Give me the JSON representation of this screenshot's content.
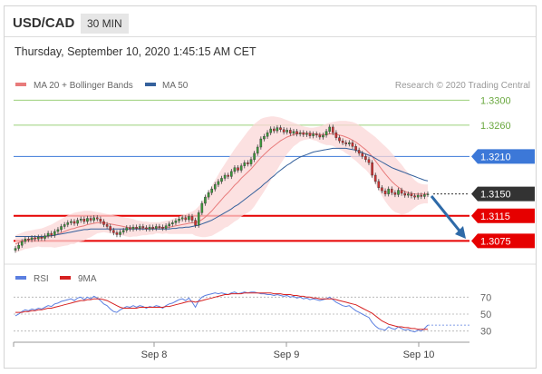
{
  "header": {
    "pair": "USD/CAD",
    "timeframe": "30 MIN"
  },
  "datetime": "Thursday, September 10, 2020 1:45:15 AM CET",
  "legend": {
    "ma20": "MA 20 + Bollinger Bands",
    "ma50": "MA 50",
    "credit": "Research © 2020 Trading Central"
  },
  "rsi_legend": {
    "rsi": "RSI",
    "ma": "9MA"
  },
  "colors": {
    "ma20": "#e87b7b",
    "ma50": "#35619c",
    "band_fill": "#fbd7d7",
    "candle_up": "#3a9a3a",
    "candle_down": "#d03030",
    "resistance": "#9bd07a",
    "support": "#e60000",
    "pivot": "#3c78d8",
    "rsi": "#5b7fe0",
    "rsi_ma": "#d62020",
    "arrow": "#2e6aa8"
  },
  "chart_data": [
    {
      "type": "candlestick",
      "title": "USD/CAD 30 MIN",
      "x_ticks": [
        "Sep 8",
        "Sep 9",
        "Sep 10"
      ],
      "ylim": [
        1.3045,
        1.3315
      ],
      "levels": [
        {
          "label": "1.3300",
          "value": 1.33,
          "kind": "resistance"
        },
        {
          "label": "1.3260",
          "value": 1.326,
          "kind": "resistance"
        },
        {
          "label": "1.3210",
          "value": 1.321,
          "kind": "pivot"
        },
        {
          "label": "1.3150",
          "value": 1.315,
          "kind": "last"
        },
        {
          "label": "1.3115",
          "value": 1.3115,
          "kind": "support"
        },
        {
          "label": "1.3075",
          "value": 1.3075,
          "kind": "support"
        }
      ],
      "close": [
        1.3063,
        1.3068,
        1.3074,
        1.3078,
        1.3077,
        1.308,
        1.3078,
        1.3081,
        1.3079,
        1.3083,
        1.3087,
        1.3084,
        1.309,
        1.3093,
        1.3098,
        1.3101,
        1.3104,
        1.3106,
        1.3103,
        1.3108,
        1.311,
        1.3106,
        1.3111,
        1.3108,
        1.3112,
        1.311,
        1.3106,
        1.3101,
        1.3098,
        1.3092,
        1.3088,
        1.3085,
        1.3089,
        1.3092,
        1.3096,
        1.3094,
        1.3097,
        1.3095,
        1.3098,
        1.3096,
        1.3094,
        1.3097,
        1.3095,
        1.3098,
        1.3097,
        1.3095,
        1.3099,
        1.3102,
        1.3104,
        1.3107,
        1.311,
        1.3112,
        1.3109,
        1.3114,
        1.3108,
        1.31,
        1.312,
        1.3135,
        1.3145,
        1.3152,
        1.3158,
        1.3165,
        1.317,
        1.3175,
        1.318,
        1.3178,
        1.3186,
        1.3192,
        1.3188,
        1.3195,
        1.32,
        1.3198,
        1.3205,
        1.3215,
        1.3225,
        1.3238,
        1.3242,
        1.3248,
        1.3254,
        1.3251,
        1.3256,
        1.3253,
        1.3249,
        1.3252,
        1.3247,
        1.325,
        1.3246,
        1.3248,
        1.3245,
        1.3247,
        1.3243,
        1.3246,
        1.3244,
        1.3241,
        1.3244,
        1.325,
        1.3257,
        1.3248,
        1.324,
        1.3235,
        1.3232,
        1.323,
        1.3232,
        1.3226,
        1.322,
        1.3215,
        1.321,
        1.3205,
        1.32,
        1.318,
        1.317,
        1.316,
        1.3155,
        1.315,
        1.3158,
        1.3152,
        1.3149,
        1.3156,
        1.3151,
        1.3148,
        1.315,
        1.3147,
        1.3145,
        1.3148,
        1.3146,
        1.3149,
        1.315
      ],
      "ma20": [
        1.307,
        1.3072,
        1.3074,
        1.3076,
        1.3077,
        1.3078,
        1.3079,
        1.308,
        1.308,
        1.3081,
        1.3082,
        1.3083,
        1.3084,
        1.3086,
        1.3088,
        1.309,
        1.3092,
        1.3094,
        1.3095,
        1.3097,
        1.3098,
        1.3099,
        1.3101,
        1.3102,
        1.3103,
        1.3104,
        1.3104,
        1.3104,
        1.3103,
        1.3102,
        1.3101,
        1.31,
        1.3099,
        1.3098,
        1.3097,
        1.3096,
        1.3096,
        1.3095,
        1.3095,
        1.3095,
        1.3095,
        1.3095,
        1.3095,
        1.3096,
        1.3096,
        1.3096,
        1.3097,
        1.3097,
        1.3098,
        1.3099,
        1.31,
        1.3101,
        1.3102,
        1.3103,
        1.3104,
        1.3104,
        1.3106,
        1.3109,
        1.3113,
        1.3118,
        1.3123,
        1.3129,
        1.3135,
        1.3141,
        1.3147,
        1.3152,
        1.3158,
        1.3164,
        1.3169,
        1.3175,
        1.318,
        1.3185,
        1.319,
        1.3196,
        1.3202,
        1.3208,
        1.3213,
        1.3218,
        1.3223,
        1.3227,
        1.3231,
        1.3235,
        1.3238,
        1.3241,
        1.3243,
        1.3245,
        1.3246,
        1.3247,
        1.3247,
        1.3247,
        1.3247,
        1.3246,
        1.3246,
        1.3245,
        1.3245,
        1.3245,
        1.3246,
        1.3246,
        1.3245,
        1.3244,
        1.3243,
        1.3241,
        1.3239,
        1.3236,
        1.3233,
        1.3229,
        1.3225,
        1.3221,
        1.3216,
        1.321,
        1.3203,
        1.3196,
        1.3189,
        1.3182,
        1.3176,
        1.317,
        1.3165,
        1.3161,
        1.3157,
        1.3154,
        1.3152,
        1.3151,
        1.315,
        1.315,
        1.315,
        1.315,
        1.315
      ],
      "bb_upper": [
        1.3084,
        1.3086,
        1.3088,
        1.309,
        1.3091,
        1.3092,
        1.3093,
        1.3094,
        1.3095,
        1.3097,
        1.3099,
        1.3101,
        1.3104,
        1.3107,
        1.311,
        1.3113,
        1.3116,
        1.3118,
        1.312,
        1.3121,
        1.3122,
        1.3123,
        1.3123,
        1.3123,
        1.3122,
        1.3121,
        1.312,
        1.3119,
        1.3118,
        1.3117,
        1.3116,
        1.3115,
        1.3114,
        1.3113,
        1.3112,
        1.3111,
        1.311,
        1.3108,
        1.3107,
        1.3106,
        1.3106,
        1.3105,
        1.3105,
        1.3105,
        1.3105,
        1.3106,
        1.3107,
        1.3108,
        1.311,
        1.3112,
        1.3114,
        1.3116,
        1.3118,
        1.312,
        1.3122,
        1.3125,
        1.313,
        1.3137,
        1.3145,
        1.3154,
        1.3163,
        1.3172,
        1.3181,
        1.319,
        1.3198,
        1.3206,
        1.3214,
        1.3222,
        1.3229,
        1.3236,
        1.3243,
        1.325,
        1.3256,
        1.3262,
        1.3266,
        1.327,
        1.3272,
        1.3273,
        1.3274,
        1.3274,
        1.3273,
        1.3272,
        1.327,
        1.3268,
        1.3266,
        1.3264,
        1.3262,
        1.326,
        1.3258,
        1.3257,
        1.3256,
        1.3256,
        1.3257,
        1.3258,
        1.326,
        1.3262,
        1.3264,
        1.3265,
        1.3266,
        1.3267,
        1.3267,
        1.3267,
        1.3266,
        1.3265,
        1.3263,
        1.326,
        1.3257,
        1.3253,
        1.3249,
        1.3245,
        1.3241,
        1.3236,
        1.3231,
        1.3226,
        1.3221,
        1.3215,
        1.3209,
        1.3203,
        1.3197,
        1.319,
        1.3184,
        1.3178,
        1.3172,
        1.3168,
        1.3166,
        1.3165,
        1.3165
      ],
      "bb_lower": [
        1.3056,
        1.3058,
        1.306,
        1.3062,
        1.3063,
        1.3064,
        1.3065,
        1.3066,
        1.3065,
        1.3065,
        1.3065,
        1.3065,
        1.3064,
        1.3065,
        1.3066,
        1.3067,
        1.3068,
        1.307,
        1.307,
        1.3073,
        1.3074,
        1.3075,
        1.3079,
        1.3081,
        1.3084,
        1.3087,
        1.3088,
        1.3089,
        1.3088,
        1.3087,
        1.3086,
        1.3085,
        1.3084,
        1.3083,
        1.3082,
        1.3081,
        1.3082,
        1.3082,
        1.3083,
        1.3084,
        1.3084,
        1.3085,
        1.3085,
        1.3087,
        1.3087,
        1.3086,
        1.3087,
        1.3086,
        1.3086,
        1.3086,
        1.3086,
        1.3086,
        1.3086,
        1.3086,
        1.3086,
        1.3083,
        1.3082,
        1.3081,
        1.3081,
        1.3082,
        1.3083,
        1.3086,
        1.3089,
        1.3092,
        1.3096,
        1.3098,
        1.3102,
        1.3106,
        1.3109,
        1.3114,
        1.3117,
        1.312,
        1.3124,
        1.313,
        1.3138,
        1.3146,
        1.3154,
        1.3163,
        1.3172,
        1.318,
        1.3189,
        1.3198,
        1.3206,
        1.3214,
        1.322,
        1.3226,
        1.323,
        1.3234,
        1.3236,
        1.3237,
        1.3238,
        1.3236,
        1.3235,
        1.3232,
        1.323,
        1.3228,
        1.3228,
        1.3227,
        1.3224,
        1.3221,
        1.3219,
        1.3215,
        1.3212,
        1.3207,
        1.3203,
        1.3198,
        1.3193,
        1.3189,
        1.3183,
        1.3175,
        1.3165,
        1.3156,
        1.3147,
        1.3138,
        1.3131,
        1.3125,
        1.3121,
        1.3119,
        1.3117,
        1.3118,
        1.312,
        1.3124,
        1.3128,
        1.3132,
        1.3134,
        1.3135,
        1.3135
      ],
      "ma50": [
        1.3082,
        1.3082,
        1.3082,
        1.3082,
        1.3082,
        1.3082,
        1.3082,
        1.3082,
        1.3082,
        1.3082,
        1.3083,
        1.3083,
        1.3084,
        1.3085,
        1.3086,
        1.3087,
        1.3088,
        1.3089,
        1.309,
        1.3091,
        1.3092,
        1.3093,
        1.3093,
        1.3094,
        1.3094,
        1.3094,
        1.3094,
        1.3094,
        1.3094,
        1.3094,
        1.3094,
        1.3094,
        1.3094,
        1.3094,
        1.3094,
        1.3094,
        1.3094,
        1.3094,
        1.3094,
        1.3094,
        1.3094,
        1.3094,
        1.3094,
        1.3094,
        1.3094,
        1.3094,
        1.3094,
        1.3094,
        1.3095,
        1.3095,
        1.3096,
        1.3096,
        1.3097,
        1.3097,
        1.3098,
        1.3099,
        1.31,
        1.3102,
        1.3104,
        1.3106,
        1.3108,
        1.3111,
        1.3114,
        1.3117,
        1.312,
        1.3123,
        1.3126,
        1.313,
        1.3133,
        1.3137,
        1.3141,
        1.3145,
        1.3149,
        1.3153,
        1.3157,
        1.3161,
        1.3166,
        1.317,
        1.3175,
        1.3179,
        1.3184,
        1.3188,
        1.3192,
        1.3196,
        1.3199,
        1.3203,
        1.3206,
        1.3209,
        1.3211,
        1.3213,
        1.3215,
        1.3217,
        1.3218,
        1.3219,
        1.322,
        1.3221,
        1.3222,
        1.3223,
        1.3223,
        1.3223,
        1.3223,
        1.3223,
        1.3222,
        1.3221,
        1.322,
        1.3218,
        1.3216,
        1.3214,
        1.3212,
        1.321,
        1.3207,
        1.3204,
        1.3201,
        1.3198,
        1.3195,
        1.3192,
        1.319,
        1.3188,
        1.3186,
        1.3184,
        1.3182,
        1.318,
        1.3178,
        1.3176,
        1.3174,
        1.3172,
        1.3171
      ]
    },
    {
      "type": "line",
      "title": "RSI",
      "y_ticks": [
        70,
        50,
        30
      ],
      "ylim": [
        20,
        80
      ],
      "series": [
        {
          "name": "RSI",
          "values": [
            48,
            50,
            53,
            55,
            54,
            56,
            55,
            57,
            56,
            58,
            60,
            59,
            62,
            63,
            65,
            66,
            67,
            68,
            66,
            69,
            70,
            67,
            70,
            68,
            71,
            69,
            66,
            62,
            60,
            56,
            53,
            52,
            55,
            57,
            59,
            58,
            60,
            58,
            60,
            59,
            57,
            59,
            58,
            60,
            59,
            57,
            60,
            62,
            63,
            65,
            67,
            68,
            66,
            69,
            64,
            58,
            66,
            70,
            72,
            73,
            74,
            75,
            74,
            75,
            74,
            73,
            75,
            76,
            74,
            75,
            76,
            75,
            76,
            76,
            75,
            74,
            74,
            73,
            73,
            72,
            73,
            72,
            71,
            72,
            70,
            71,
            69,
            70,
            68,
            69,
            67,
            68,
            67,
            66,
            67,
            68,
            70,
            67,
            64,
            62,
            60,
            59,
            60,
            57,
            54,
            52,
            50,
            48,
            46,
            40,
            36,
            33,
            32,
            31,
            35,
            33,
            32,
            35,
            33,
            31,
            32,
            30,
            29,
            31,
            30,
            33,
            37
          ]
        },
        {
          "name": "9MA",
          "values": [
            52,
            52,
            52,
            53,
            53,
            54,
            54,
            55,
            55,
            56,
            57,
            57,
            58,
            59,
            60,
            61,
            62,
            63,
            64,
            65,
            66,
            66,
            67,
            67,
            68,
            68,
            68,
            67,
            66,
            64,
            62,
            60,
            58,
            57,
            57,
            57,
            57,
            57,
            58,
            58,
            58,
            58,
            58,
            58,
            58,
            58,
            59,
            59,
            60,
            61,
            62,
            63,
            64,
            65,
            65,
            64,
            65,
            66,
            67,
            68,
            69,
            70,
            71,
            72,
            73,
            73,
            74,
            74,
            74,
            74,
            75,
            75,
            75,
            75,
            75,
            75,
            75,
            75,
            75,
            74,
            74,
            74,
            73,
            73,
            73,
            72,
            72,
            71,
            71,
            70,
            70,
            69,
            69,
            68,
            68,
            68,
            68,
            68,
            67,
            66,
            65,
            64,
            63,
            62,
            61,
            59,
            57,
            55,
            53,
            51,
            48,
            45,
            42,
            40,
            38,
            37,
            36,
            35,
            35,
            34,
            34,
            33,
            33,
            32,
            32,
            32,
            32
          ]
        }
      ]
    }
  ]
}
